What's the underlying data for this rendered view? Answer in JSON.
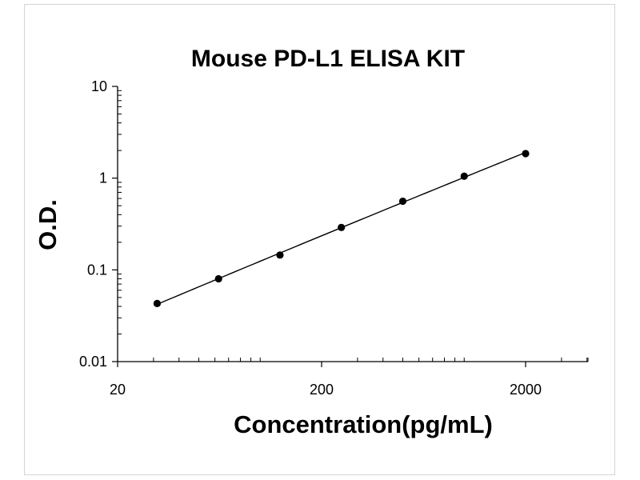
{
  "chart_data": {
    "type": "scatter",
    "title": "Mouse PD-L1 ELISA KIT",
    "xlabel": "Concentration(pg/mL)",
    "ylabel": "O.D.",
    "x_scale": "log",
    "y_scale": "log",
    "xlim": [
      20,
      4000
    ],
    "ylim": [
      0.01,
      10
    ],
    "x_ticks": [
      "20",
      "200",
      "2000"
    ],
    "y_ticks": [
      "0.01",
      "0.1",
      "1",
      "10"
    ],
    "grid": false,
    "legend": "none",
    "fit_line": "smooth curve through points",
    "marker_color": "#000000",
    "line_color": "#000000",
    "series": [
      {
        "x": [
          31.25,
          62.5,
          125,
          250,
          500,
          1000,
          2000
        ],
        "y": [
          0.043,
          0.08,
          0.145,
          0.29,
          0.56,
          1.05,
          1.85
        ]
      }
    ]
  }
}
